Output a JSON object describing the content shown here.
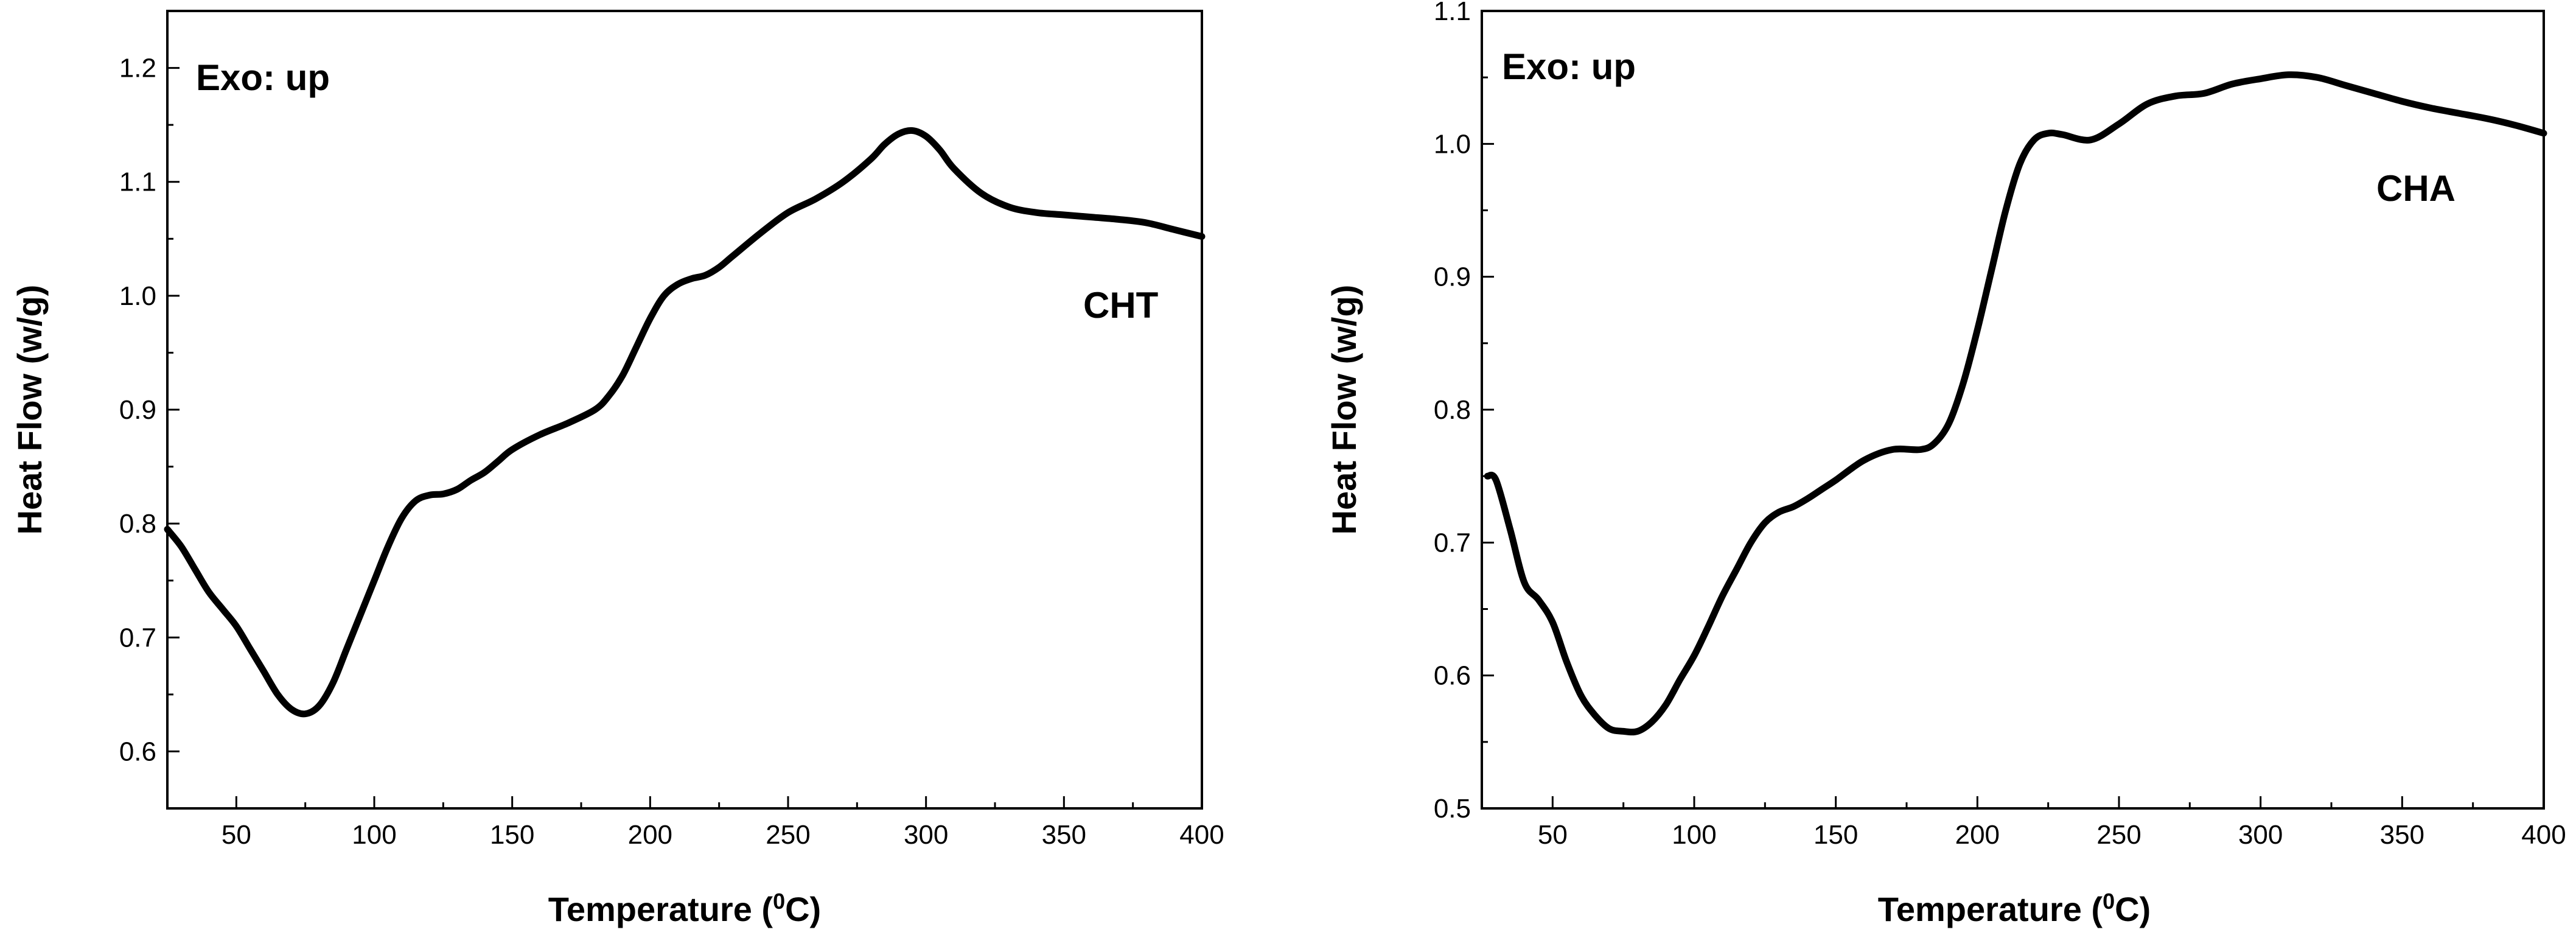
{
  "chart_data": [
    {
      "type": "line",
      "title": "",
      "xlabel": "Temperature",
      "xlabel_unit": "0C",
      "ylabel": "Heat Flow (w/g)",
      "xlim": [
        25,
        400
      ],
      "ylim": [
        0.55,
        1.25
      ],
      "xticks": [
        50,
        100,
        150,
        200,
        250,
        300,
        350,
        400
      ],
      "yticks": [
        0.6,
        0.7,
        0.8,
        0.9,
        1.0,
        1.1,
        1.2
      ],
      "ytick_labels": [
        "0.6",
        "0.7",
        "0.8",
        "0.9",
        "1.0",
        "1.1",
        "1.2"
      ],
      "annotations": {
        "top_left": "Exo: up",
        "series_label": "CHT"
      },
      "series": [
        {
          "name": "CHT",
          "x": [
            25,
            30,
            35,
            40,
            45,
            50,
            55,
            60,
            65,
            70,
            75,
            80,
            85,
            90,
            95,
            100,
            105,
            110,
            115,
            120,
            125,
            130,
            135,
            140,
            145,
            150,
            160,
            170,
            180,
            185,
            190,
            195,
            200,
            205,
            210,
            215,
            220,
            225,
            230,
            240,
            250,
            260,
            270,
            280,
            285,
            290,
            295,
            300,
            305,
            310,
            320,
            330,
            340,
            350,
            360,
            370,
            380,
            390,
            400
          ],
          "y": [
            0.795,
            0.78,
            0.76,
            0.74,
            0.725,
            0.71,
            0.69,
            0.67,
            0.65,
            0.637,
            0.633,
            0.64,
            0.66,
            0.69,
            0.72,
            0.75,
            0.78,
            0.805,
            0.82,
            0.825,
            0.826,
            0.83,
            0.838,
            0.845,
            0.855,
            0.865,
            0.878,
            0.888,
            0.9,
            0.912,
            0.93,
            0.955,
            0.98,
            1.0,
            1.01,
            1.015,
            1.018,
            1.025,
            1.035,
            1.055,
            1.073,
            1.085,
            1.1,
            1.12,
            1.133,
            1.142,
            1.145,
            1.14,
            1.128,
            1.112,
            1.09,
            1.078,
            1.073,
            1.071,
            1.069,
            1.067,
            1.064,
            1.058,
            1.052
          ]
        }
      ]
    },
    {
      "type": "line",
      "title": "",
      "xlabel": "Temperature",
      "xlabel_unit": "0C",
      "ylabel": "Heat Flow (w/g)",
      "xlim": [
        25,
        400
      ],
      "ylim": [
        0.5,
        1.1
      ],
      "xticks": [
        50,
        100,
        150,
        200,
        250,
        300,
        350,
        400
      ],
      "yticks": [
        0.5,
        0.6,
        0.7,
        0.8,
        0.9,
        1.0,
        1.1
      ],
      "ytick_labels": [
        "0.5",
        "0.6",
        "0.7",
        "0.8",
        "0.9",
        "1.0",
        "1.1"
      ],
      "annotations": {
        "top_left": "Exo: up",
        "series_label": "CHA"
      },
      "series": [
        {
          "name": "CHA",
          "x": [
            27,
            30,
            35,
            40,
            45,
            50,
            55,
            60,
            65,
            70,
            75,
            80,
            85,
            90,
            95,
            100,
            105,
            110,
            115,
            120,
            125,
            130,
            135,
            140,
            145,
            150,
            160,
            170,
            180,
            185,
            190,
            195,
            200,
            205,
            210,
            215,
            220,
            225,
            230,
            240,
            250,
            260,
            270,
            280,
            290,
            300,
            310,
            320,
            330,
            340,
            350,
            360,
            370,
            380,
            390,
            400
          ],
          "y": [
            0.75,
            0.747,
            0.71,
            0.67,
            0.657,
            0.64,
            0.61,
            0.585,
            0.57,
            0.56,
            0.558,
            0.558,
            0.565,
            0.578,
            0.597,
            0.615,
            0.637,
            0.66,
            0.68,
            0.7,
            0.715,
            0.723,
            0.727,
            0.733,
            0.74,
            0.747,
            0.762,
            0.77,
            0.77,
            0.775,
            0.79,
            0.82,
            0.86,
            0.905,
            0.95,
            0.985,
            1.003,
            1.008,
            1.007,
            1.003,
            1.015,
            1.03,
            1.036,
            1.038,
            1.045,
            1.049,
            1.052,
            1.05,
            1.044,
            1.038,
            1.032,
            1.027,
            1.023,
            1.019,
            1.014,
            1.008
          ]
        }
      ]
    }
  ]
}
